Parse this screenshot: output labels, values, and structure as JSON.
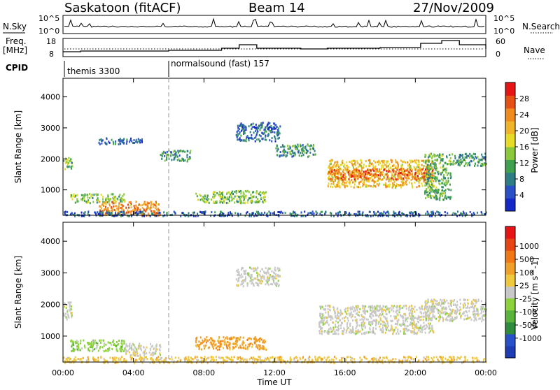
{
  "header": {
    "station": "Saskatoon (fitACF)",
    "beam": "Beam 14",
    "date": "27/Nov/2009"
  },
  "info_panels": {
    "nsky_label": "N.Sky",
    "nsky_ticks": [
      "10^5",
      "10^0"
    ],
    "nsearch_label": "N.Search",
    "nsearch_ticks": [
      "10^5",
      "10^0"
    ],
    "freq_label": "Freq.",
    "freq_unit": "[MHz]",
    "freq_ticks": [
      "18",
      "8"
    ],
    "nave_label": "Nave",
    "nave_ticks": [
      "60",
      "0"
    ],
    "cpid_label": "CPID",
    "cpid_segments": [
      {
        "name": "themis 3300",
        "start_hour": 0,
        "end_hour": 6
      },
      {
        "name": "normalsound (fast) 157",
        "start_hour": 6,
        "end_hour": 24
      }
    ]
  },
  "x_axis": {
    "ticks": [
      "00:00",
      "04:00",
      "08:00",
      "12:00",
      "16:00",
      "20:00",
      "00:00"
    ],
    "tick_hours": [
      0,
      4,
      8,
      12,
      16,
      20,
      24
    ],
    "label": "Time UT"
  },
  "chart_data": [
    {
      "type": "heatmap",
      "ylabel": "Slant Range [km]",
      "yticks": [
        "1000",
        "2000",
        "3000",
        "4000"
      ],
      "ytick_values": [
        1000,
        2000,
        3000,
        4000
      ],
      "ylim": [
        180,
        4600
      ],
      "xlim_hours": [
        0,
        24
      ],
      "colorbar": {
        "label": "Power [dB]",
        "ticks": [
          "4",
          "8",
          "12",
          "16",
          "20",
          "24",
          "28"
        ],
        "tick_values": [
          4,
          8,
          12,
          16,
          20,
          24,
          28
        ],
        "range": [
          0,
          32
        ],
        "colors": [
          "#1428c8",
          "#2a50c8",
          "#2e7d84",
          "#3fa050",
          "#8cc83c",
          "#e6dc28",
          "#f0b428",
          "#f08c1e",
          "#e65014",
          "#e61414"
        ]
      },
      "regions": [
        {
          "t0": 0.0,
          "t1": 0.5,
          "r0": 1650,
          "r1": 2100,
          "level": 14
        },
        {
          "t0": 0.4,
          "t1": 3.5,
          "r0": 600,
          "r1": 900,
          "level": 14
        },
        {
          "t0": 2.0,
          "t1": 5.5,
          "r0": 180,
          "r1": 650,
          "level": 24
        },
        {
          "t0": 0.0,
          "t1": 24.0,
          "r0": 180,
          "r1": 330,
          "level": 6
        },
        {
          "t0": 7.5,
          "t1": 11.5,
          "r0": 600,
          "r1": 1000,
          "level": 14
        },
        {
          "t0": 9.8,
          "t1": 12.3,
          "r0": 2600,
          "r1": 3200,
          "level": 6
        },
        {
          "t0": 12.0,
          "t1": 14.3,
          "r0": 2100,
          "r1": 2500,
          "level": 10
        },
        {
          "t0": 15.0,
          "t1": 21.0,
          "r0": 1100,
          "r1": 2000,
          "level": 20
        },
        {
          "t0": 15.0,
          "t1": 21.0,
          "r0": 1350,
          "r1": 1700,
          "level": 26
        },
        {
          "t0": 20.5,
          "t1": 22.0,
          "r0": 700,
          "r1": 2200,
          "level": 12
        },
        {
          "t0": 22.0,
          "t1": 24.0,
          "r0": 1800,
          "r1": 2200,
          "level": 10
        },
        {
          "t0": 5.5,
          "t1": 7.2,
          "r0": 1950,
          "r1": 2300,
          "level": 10
        },
        {
          "t0": 2.0,
          "t1": 4.5,
          "r0": 2500,
          "r1": 2700,
          "level": 6
        }
      ]
    },
    {
      "type": "heatmap",
      "ylabel": "Slant Range [km]",
      "yticks": [
        "1000",
        "2000",
        "3000",
        "4000"
      ],
      "ytick_values": [
        1000,
        2000,
        3000,
        4000
      ],
      "ylim": [
        180,
        4600
      ],
      "xlim_hours": [
        0,
        24
      ],
      "colorbar": {
        "label": "Velocity [m s^-1]",
        "ticks": [
          "1000",
          "500",
          "100",
          "25",
          "-25",
          "-100",
          "-500",
          "-1000"
        ],
        "tick_values": [
          1000,
          500,
          100,
          25,
          -25,
          -100,
          -500,
          -1000
        ],
        "colors": [
          "#1e3cb4",
          "#2850c8",
          "#2e8c3c",
          "#5ab43c",
          "#8cd23c",
          "#c8c8c8",
          "#f0c83c",
          "#f0a028",
          "#f07814",
          "#e64614",
          "#e61414"
        ]
      },
      "regions": [
        {
          "t0": 0.4,
          "t1": 3.5,
          "r0": 550,
          "r1": 900,
          "color_index": 4
        },
        {
          "t0": 3.5,
          "t1": 5.5,
          "r0": 400,
          "r1": 800,
          "color_index": 5
        },
        {
          "t0": 0.0,
          "t1": 24.0,
          "r0": 180,
          "r1": 380,
          "color_index": 6
        },
        {
          "t0": 7.5,
          "t1": 11.5,
          "r0": 600,
          "r1": 1000,
          "color_index": 7
        },
        {
          "t0": 9.8,
          "t1": 12.3,
          "r0": 2600,
          "r1": 3200,
          "color_index": 5
        },
        {
          "t0": 14.5,
          "t1": 21.0,
          "r0": 1100,
          "r1": 2000,
          "color_index": 5
        },
        {
          "t0": 20.5,
          "t1": 24.0,
          "r0": 1500,
          "r1": 2200,
          "color_index": 5
        },
        {
          "t0": 0.0,
          "t1": 0.5,
          "r0": 1500,
          "r1": 2100,
          "color_index": 5
        }
      ]
    }
  ]
}
